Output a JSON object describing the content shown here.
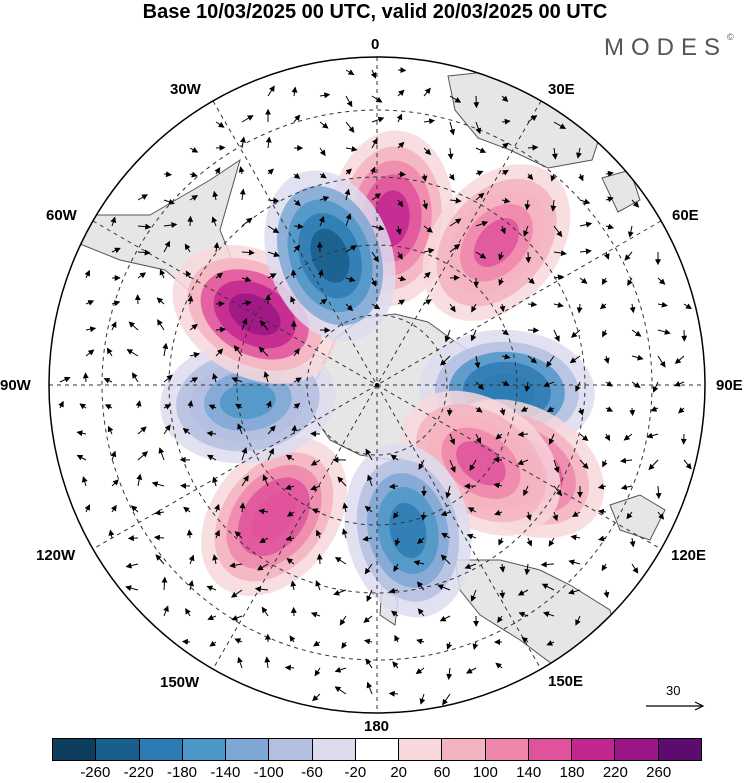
{
  "title": "Base 10/03/2025 00 UTC, valid 20/03/2025 00 UTC",
  "brand": "MODES",
  "brand_mark": "©",
  "longitude_labels": {
    "0": "0",
    "30E": "30E",
    "60E": "60E",
    "90E": "90E",
    "120E": "120E",
    "150E": "150E",
    "180": "180",
    "150W": "150W",
    "120W": "120W",
    "90W": "90W",
    "60W": "60W",
    "30W": "30W"
  },
  "reference_vector": {
    "label": "30"
  },
  "colorbar": {
    "colors": [
      "#0d3e5e",
      "#1a5e8c",
      "#2d7bb3",
      "#4d96c8",
      "#7ea7d4",
      "#b3bee0",
      "#dcdcee",
      "#ffffff",
      "#f8d8dc",
      "#f4b3c0",
      "#ee86ab",
      "#e0529c",
      "#c2268f",
      "#9a1585",
      "#5c0c6e"
    ],
    "ticks": [
      "-260",
      "-220",
      "-180",
      "-140",
      "-100",
      "-60",
      "-20",
      "20",
      "60",
      "100",
      "140",
      "180",
      "220",
      "260"
    ]
  },
  "map": {
    "projection": "south polar stereographic",
    "land_color": "#e6e6e6",
    "anomaly_centers": [
      {
        "lon": 5,
        "lat": -45,
        "value": 200
      },
      {
        "lon": 40,
        "lat": -40,
        "value": 150
      },
      {
        "lon": 93,
        "lat": -55,
        "value": -220
      },
      {
        "lon": 120,
        "lat": -45,
        "value": 190
      },
      {
        "lon": 127,
        "lat": -55,
        "value": 150
      },
      {
        "lon": 168,
        "lat": -50,
        "value": -190
      },
      {
        "lon": 218,
        "lat": -45,
        "value": 170
      },
      {
        "lon": 263,
        "lat": -55,
        "value": -150
      },
      {
        "lon": 300,
        "lat": -52,
        "value": 220
      },
      {
        "lon": 340,
        "lat": -53,
        "value": -250
      }
    ]
  }
}
